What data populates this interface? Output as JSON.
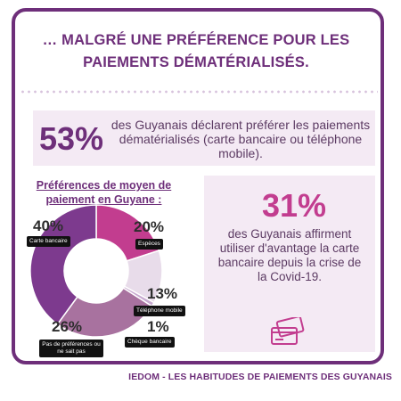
{
  "title_line1": "… MALGRÉ UNE PRÉFÉRENCE POUR LES",
  "title_line2": "PAIEMENTS DÉMATÉRIALISÉS.",
  "stat1": {
    "value": "53%",
    "text": "des Guyanais déclarent préférer les paiements dématérialisés (carte bancaire ou téléphone mobile)."
  },
  "stat2": {
    "value": "31%",
    "text": "des Guyanais affirment utiliser d'avantage la carte bancaire depuis la crise de la Covid-19."
  },
  "icons": {
    "stat2": "credit-cards-icon"
  },
  "footer": "IEDOM - LES HABITUDES DE PAIEMENTS DES GUYANAIS",
  "colors": {
    "brand": "#6e2f7a",
    "panel": "#f4eaf4"
  },
  "chart_data": {
    "type": "pie",
    "title": "Préférences de moyen de paiement en Guyane :",
    "categories": [
      "Carte bancaire",
      "Espèces",
      "Téléphone mobile",
      "Chèque bancaire",
      "Pas de préférences ou ne sait pas"
    ],
    "values": [
      40,
      20,
      13,
      1,
      26
    ],
    "labels": [
      "40%",
      "20%",
      "13%",
      "1%",
      "26%"
    ],
    "colors": [
      "#7d3a8e",
      "#c23d8f",
      "#e8dcea",
      "#c7a9cf",
      "#a8729f"
    ]
  }
}
